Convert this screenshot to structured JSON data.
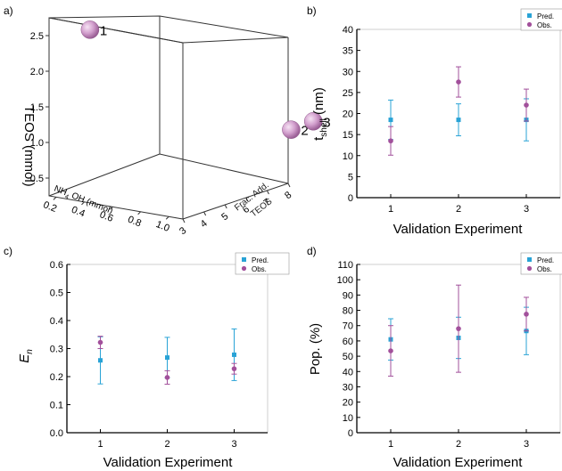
{
  "colors": {
    "pred": "#29a3d6",
    "obs": "#a2509b"
  },
  "chart_data": [
    {
      "panel": "a)",
      "type": "scatter",
      "axes": {
        "x": {
          "label": "NH4 OH (mmol)",
          "label_main": "NH",
          "label_sub": "4",
          "label_rest": " OH (mmol)",
          "ticks": [
            "0.2",
            "0.4",
            "0.6",
            "0.8",
            "1.0"
          ]
        },
        "y": {
          "label": "Frac. Add. TEOS",
          "label_line1": "Frac. Add.",
          "label_line2": "TEOS",
          "ticks": [
            "3",
            "4",
            "5",
            "6",
            "7",
            "8"
          ]
        },
        "z": {
          "label": "TEOS (mmol)",
          "ticks": [
            "0.5",
            "1.0",
            "1.5",
            "2.0",
            "2.5"
          ]
        }
      },
      "points": [
        {
          "label": "1",
          "nh4oh": 0.2,
          "frac_add": 3,
          "teos": 2.6
        },
        {
          "label": "2",
          "nh4oh": 1.0,
          "frac_add": 7,
          "teos": 1.0
        },
        {
          "label": "3",
          "nh4oh": 1.0,
          "frac_add": 8,
          "teos": 1.0
        }
      ]
    },
    {
      "panel": "b)",
      "type": "scatter",
      "xlabel": "Validation Experiment",
      "ylabel_main": "t",
      "ylabel_sub": "shell",
      "ylabel_rest": " (nm)",
      "xlim": [
        0.5,
        3.5
      ],
      "ylim": [
        0,
        40
      ],
      "xticks": [
        "1",
        "2",
        "3"
      ],
      "yticks": [
        0,
        5,
        10,
        15,
        20,
        25,
        30,
        35,
        40
      ],
      "legend": [
        "Pred.",
        "Obs."
      ],
      "series": [
        {
          "name": "Pred.",
          "x": [
            1,
            2,
            3
          ],
          "y": [
            18.5,
            18.5,
            18.5
          ],
          "err": [
            4.7,
            3.8,
            5.0
          ]
        },
        {
          "name": "Obs.",
          "x": [
            1,
            2,
            3
          ],
          "y": [
            13.5,
            27.5,
            22.0
          ],
          "err": [
            3.4,
            3.6,
            3.8
          ]
        }
      ]
    },
    {
      "panel": "c)",
      "type": "scatter",
      "xlabel": "Validation Experiment",
      "ylabel_main": "E",
      "ylabel_sub": "n",
      "ylabel_rest": "",
      "xlim": [
        0.5,
        3.5
      ],
      "ylim": [
        0,
        0.6
      ],
      "xticks": [
        "1",
        "2",
        "3"
      ],
      "yticks": [
        "0.0",
        "0.1",
        "0.2",
        "0.3",
        "0.4",
        "0.5",
        "0.6"
      ],
      "legend": [
        "Pred.",
        "Obs."
      ],
      "series": [
        {
          "name": "Pred.",
          "x": [
            1,
            2,
            3
          ],
          "y": [
            0.258,
            0.268,
            0.278
          ],
          "err": [
            0.084,
            0.072,
            0.092
          ]
        },
        {
          "name": "Obs.",
          "x": [
            1,
            2,
            3
          ],
          "y": [
            0.322,
            0.197,
            0.228
          ],
          "err": [
            0.022,
            0.024,
            0.019
          ]
        }
      ]
    },
    {
      "panel": "d)",
      "type": "scatter",
      "xlabel": "Validation Experiment",
      "ylabel_main": "Pop. (%)",
      "ylabel_sub": "",
      "ylabel_rest": "",
      "xlim": [
        0.5,
        3.5
      ],
      "ylim": [
        0,
        110
      ],
      "xticks": [
        "1",
        "2",
        "3"
      ],
      "yticks": [
        0,
        10,
        20,
        30,
        40,
        50,
        60,
        70,
        80,
        90,
        100,
        110
      ],
      "legend": [
        "Pred.",
        "Obs."
      ],
      "series": [
        {
          "name": "Pred.",
          "x": [
            1,
            2,
            3
          ],
          "y": [
            61,
            62,
            66.5
          ],
          "err": [
            13.5,
            13.5,
            15.5
          ]
        },
        {
          "name": "Obs.",
          "x": [
            1,
            2,
            3
          ],
          "y": [
            53.5,
            68,
            77.5
          ],
          "err": [
            16.5,
            28.5,
            11.0
          ]
        }
      ]
    }
  ]
}
